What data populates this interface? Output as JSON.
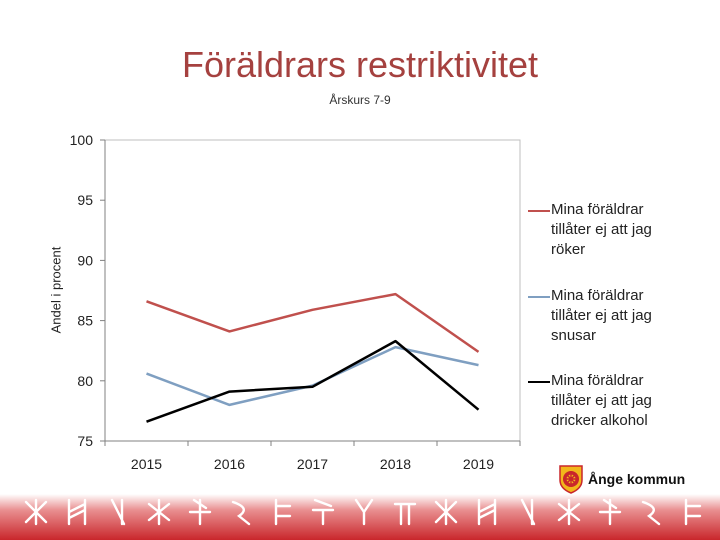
{
  "title": "Föräldrars restriktivitet",
  "subtitle": "Årskurs 7-9",
  "colors": {
    "title": "#a5413f",
    "banner": "#c9262b"
  },
  "logo": {
    "text": "Ånge kommun",
    "icon": "ange-kommun-emblem-icon"
  },
  "chart_data": {
    "type": "line",
    "title": "Föräldrars restriktivitet",
    "subtitle": "Årskurs 7-9",
    "xlabel": "",
    "ylabel": "Andel i procent",
    "ylim": [
      75,
      100
    ],
    "yticks": [
      75,
      80,
      85,
      90,
      95,
      100
    ],
    "grid": false,
    "legend_position": "right",
    "categories": [
      "2015",
      "2016",
      "2017",
      "2018",
      "2019"
    ],
    "series": [
      {
        "name": "Mina föräldrar tillåter ej att jag röker",
        "color": "#c0504d",
        "values": [
          86.6,
          84.1,
          85.9,
          87.2,
          82.4
        ]
      },
      {
        "name": "Mina föräldrar tillåter ej att jag snusar",
        "color": "#7f9fc1",
        "values": [
          80.6,
          78.0,
          79.6,
          82.8,
          81.3
        ]
      },
      {
        "name": "Mina föräldrar tillåter ej att jag dricker alkohol",
        "color": "#000000",
        "values": [
          76.6,
          79.1,
          79.5,
          83.3,
          77.6
        ]
      }
    ]
  }
}
